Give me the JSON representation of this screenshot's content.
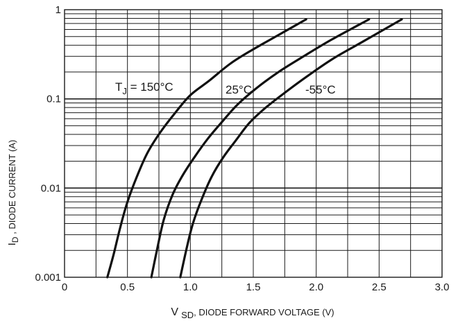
{
  "chart_data": {
    "type": "line",
    "x_scale": "linear",
    "y_scale": "log",
    "xlim": [
      0,
      3.0
    ],
    "ylim": [
      0.001,
      1
    ],
    "grid": true,
    "x_ticks": [
      "0",
      "0.5",
      "1.0",
      "1.5",
      "2.0",
      "2.5",
      "3.0"
    ],
    "y_ticks": [
      "0.001",
      "0.01",
      "0.1",
      "1"
    ],
    "xlabel": {
      "main": "V",
      "sub": "SD",
      "rest": ", DIODE FORWARD VOLTAGE (V)"
    },
    "ylabel": {
      "main": "I",
      "sub": "D",
      "rest": " , DIODE CURRENT (A)"
    },
    "series": [
      {
        "name": "150°C",
        "x": [
          0.34,
          0.39,
          0.44,
          0.5,
          0.58,
          0.66,
          0.76,
          0.88,
          1.0,
          1.15,
          1.32,
          1.5,
          1.7,
          1.92
        ],
        "y": [
          0.001,
          0.0018,
          0.0035,
          0.007,
          0.014,
          0.025,
          0.042,
          0.07,
          0.11,
          0.16,
          0.25,
          0.36,
          0.52,
          0.78
        ]
      },
      {
        "name": "25°C",
        "x": [
          0.69,
          0.74,
          0.79,
          0.86,
          0.94,
          1.04,
          1.14,
          1.25,
          1.37,
          1.52,
          1.7,
          1.9,
          2.12,
          2.42
        ],
        "y": [
          0.001,
          0.0022,
          0.0045,
          0.0085,
          0.014,
          0.023,
          0.036,
          0.055,
          0.085,
          0.13,
          0.2,
          0.3,
          0.46,
          0.78
        ]
      },
      {
        "name": "-55°C",
        "x": [
          0.92,
          0.97,
          1.02,
          1.09,
          1.17,
          1.26,
          1.36,
          1.47,
          1.6,
          1.76,
          1.93,
          2.13,
          2.36,
          2.68
        ],
        "y": [
          0.001,
          0.0021,
          0.004,
          0.0075,
          0.0135,
          0.022,
          0.034,
          0.054,
          0.08,
          0.12,
          0.18,
          0.28,
          0.43,
          0.78
        ]
      }
    ],
    "annotations": [
      {
        "text_main": "T",
        "text_sub": "J",
        "text_rest": " = 150°C",
        "series": "150°C"
      },
      {
        "text": "25°C",
        "series": "25°C"
      },
      {
        "text": "-55°C",
        "series": "-55°C"
      }
    ],
    "colors": {
      "curve": "#111111",
      "grid": "#1a1a1a",
      "background": "#ffffff"
    }
  }
}
